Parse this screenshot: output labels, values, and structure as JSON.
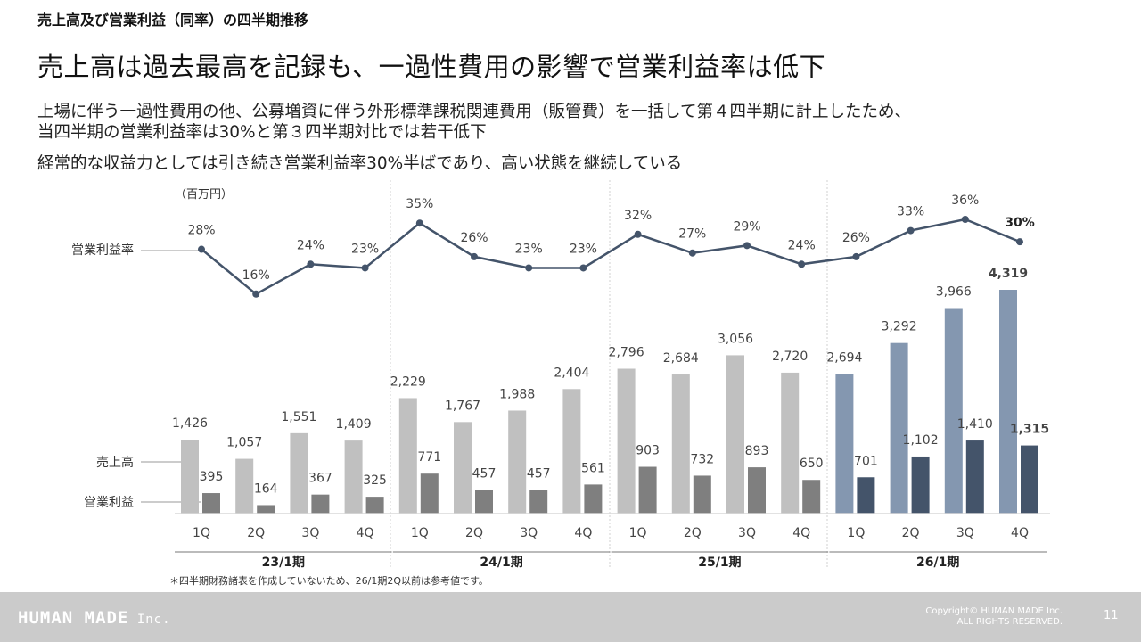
{
  "header": {
    "kicker": "売上高及び営業利益（同率）の四半期推移",
    "headline": "売上高は過去最高を記録も、一過性費用の影響で営業利益率は低下",
    "body_line1": "上場に伴う一過性費用の他、公募増資に伴う外形標準課税関連費用（販管費）を一括して第４四半期に計上したため、",
    "body_line2": "当四半期の営業利益率は30%と第３四半期対比では若干低下",
    "body_line3": "経常的な収益力としては引き続き営業利益率30%半ばであり、高い状態を継続している"
  },
  "chart_data": {
    "type": "bar",
    "unit_label": "（百万円）",
    "label_margin": "営業利益率",
    "label_sales": "売上高",
    "label_op": "営業利益",
    "quarters": [
      "1Q",
      "2Q",
      "3Q",
      "4Q",
      "1Q",
      "2Q",
      "3Q",
      "4Q",
      "1Q",
      "2Q",
      "3Q",
      "4Q",
      "1Q",
      "2Q",
      "3Q",
      "4Q"
    ],
    "fiscal_years": [
      "23/1期",
      "24/1期",
      "25/1期",
      "26/1期"
    ],
    "series": [
      {
        "name": "売上高",
        "values": [
          1426,
          1057,
          1551,
          1409,
          2229,
          1767,
          1988,
          2404,
          2796,
          2684,
          3056,
          2720,
          2694,
          3292,
          3966,
          4319
        ],
        "labels": [
          "1,426",
          "1,057",
          "1,551",
          "1,409",
          "2,229",
          "1,767",
          "1,988",
          "2,404",
          "2,796",
          "2,684",
          "3,056",
          "2,720",
          "2,694",
          "3,292",
          "3,966",
          "4,319"
        ]
      },
      {
        "name": "営業利益",
        "values": [
          395,
          164,
          367,
          325,
          771,
          457,
          457,
          561,
          903,
          732,
          893,
          650,
          701,
          1102,
          1410,
          1315
        ],
        "labels": [
          "395",
          "164",
          "367",
          "325",
          "771",
          "457",
          "457",
          "561",
          "903",
          "732",
          "893",
          "650",
          "701",
          "1,102",
          "1,410",
          "1,315"
        ]
      },
      {
        "name": "営業利益率",
        "values": [
          28,
          16,
          24,
          23,
          35,
          26,
          23,
          23,
          32,
          27,
          29,
          24,
          26,
          33,
          36,
          30
        ],
        "labels": [
          "28%",
          "16%",
          "24%",
          "23%",
          "35%",
          "26%",
          "23%",
          "23%",
          "32%",
          "27%",
          "29%",
          "24%",
          "26%",
          "33%",
          "36%",
          "30%"
        ]
      }
    ],
    "bar_ylim": [
      0,
      4500
    ],
    "margin_ylim": [
      15,
      36
    ],
    "colors": {
      "sales_past": "#c0c0c0",
      "op_past": "#7f7f7f",
      "sales_current": "#8497b0",
      "op_current": "#44546a",
      "line": "#44546a"
    }
  },
  "footnote": "＊四半期財務諸表を作成していないため、26/1期2Q以前は参考値です。",
  "footer": {
    "logo": "HUMAN MADE",
    "logo_suffix": " Inc.",
    "copyright_line1": "Copyright© HUMAN MADE Inc.",
    "copyright_line2": "ALL RIGHTS RESERVED.",
    "page_number": "11"
  }
}
